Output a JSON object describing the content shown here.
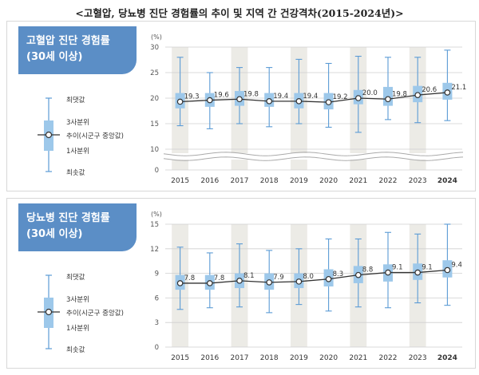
{
  "header": {
    "title": "<고혈압, 당뇨병 진단 경험률의 추이 및 지역 간 건강격차(2015-2024년)>"
  },
  "legend": {
    "max": "최댓값",
    "q3": "3사분위",
    "median": "추이(시군구 중앙값)",
    "q1": "1사분위",
    "min": "최솟값"
  },
  "colors": {
    "box": "#9dc8ea",
    "whisker": "#5b9bd5",
    "line": "#333333",
    "title_bg": "#5b8ec6",
    "band": "#ecebe6"
  },
  "chart_data": [
    {
      "type": "box",
      "title_line1": "고혈압 진단 경험률",
      "title_line2": "(30세 이상)",
      "unit": "(%)",
      "categories": [
        "2015",
        "2016",
        "2017",
        "2018",
        "2019",
        "2020",
        "2021",
        "2022",
        "2023",
        "2024"
      ],
      "median": [
        19.3,
        19.6,
        19.8,
        19.4,
        19.4,
        19.2,
        20.0,
        19.8,
        20.6,
        21.1
      ],
      "q1": [
        18.0,
        18.3,
        18.5,
        18.3,
        18.0,
        17.8,
        18.8,
        18.5,
        19.2,
        19.7
      ],
      "q3": [
        21.0,
        21.0,
        21.4,
        21.0,
        21.0,
        21.0,
        21.6,
        22.2,
        22.4,
        23.0
      ],
      "min": [
        14.6,
        14.0,
        15.0,
        14.4,
        15.0,
        14.3,
        13.3,
        15.8,
        15.2,
        15.6
      ],
      "max": [
        28.0,
        25.0,
        26.0,
        26.0,
        27.6,
        26.8,
        28.2,
        28.0,
        28.0,
        29.4
      ],
      "yticks": [
        "0",
        "10",
        "15",
        "20",
        "25",
        "30"
      ],
      "axis_break": true,
      "ylim": [
        0,
        30
      ]
    },
    {
      "type": "box",
      "title_line1": "당뇨병 진단 경험률",
      "title_line2": "(30세 이상)",
      "unit": "(%)",
      "categories": [
        "2015",
        "2016",
        "2017",
        "2018",
        "2019",
        "2020",
        "2021",
        "2022",
        "2023",
        "2024"
      ],
      "median": [
        7.8,
        7.8,
        8.1,
        7.9,
        8.0,
        8.3,
        8.8,
        9.1,
        9.1,
        9.4
      ],
      "q1": [
        7.0,
        7.0,
        7.2,
        7.0,
        7.2,
        7.4,
        7.8,
        8.0,
        8.2,
        8.5
      ],
      "q3": [
        8.8,
        8.8,
        9.0,
        9.0,
        9.0,
        9.5,
        9.9,
        10.1,
        10.2,
        10.6
      ],
      "min": [
        4.6,
        4.8,
        4.9,
        4.2,
        5.2,
        4.4,
        4.9,
        4.8,
        5.4,
        5.1
      ],
      "max": [
        12.2,
        11.5,
        12.6,
        11.8,
        12.0,
        13.2,
        13.2,
        14.0,
        13.8,
        15.0
      ],
      "yticks": [
        "0",
        "3",
        "6",
        "9",
        "12",
        "15"
      ],
      "axis_break": false,
      "ylim": [
        0,
        15
      ]
    }
  ]
}
